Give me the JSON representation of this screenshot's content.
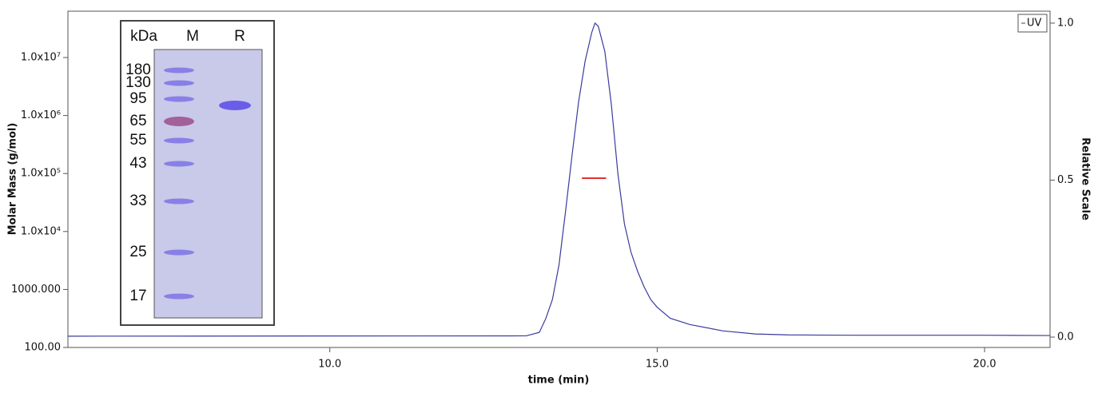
{
  "chart_data": {
    "type": "line",
    "x_label": "time (min)",
    "y_label": "Molar Mass (g/mol)",
    "y2_label": "Relative Scale",
    "xlim": [
      6,
      21
    ],
    "xticks": [
      {
        "value": 10,
        "label": "10.0"
      },
      {
        "value": 15,
        "label": "15.0"
      },
      {
        "value": 20,
        "label": "20.0"
      }
    ],
    "ylog": true,
    "ylim": [
      100,
      63000000
    ],
    "yticks": [
      {
        "value": 100,
        "label": "100.00"
      },
      {
        "value": 1000,
        "label": "1000.000"
      },
      {
        "value": 10000,
        "label": "1.0x10⁴"
      },
      {
        "value": 100000,
        "label": "1.0x10⁵"
      },
      {
        "value": 1000000,
        "label": "1.0x10⁶"
      },
      {
        "value": 10000000,
        "label": "1.0x10⁷"
      }
    ],
    "y2lim": [
      -0.033,
      1.038
    ],
    "y2ticks": [
      {
        "value": 0,
        "label": "0.0"
      },
      {
        "value": 0.5,
        "label": "0.5"
      },
      {
        "value": 1,
        "label": "1.0"
      }
    ],
    "legend": "top-right",
    "series": [
      {
        "name": "UV",
        "color": "#3a3a9e",
        "axis": "y2",
        "x": [
          6,
          13.0,
          13.2,
          13.3,
          13.4,
          13.5,
          13.6,
          13.7,
          13.8,
          13.9,
          14.0,
          14.05,
          14.1,
          14.2,
          14.3,
          14.4,
          14.5,
          14.6,
          14.7,
          14.8,
          14.9,
          15.0,
          15.2,
          15.5,
          16.0,
          16.5,
          17,
          18,
          20,
          21
        ],
        "values": [
          0.003,
          0.004,
          0.015,
          0.06,
          0.12,
          0.23,
          0.4,
          0.58,
          0.75,
          0.88,
          0.97,
          1.0,
          0.99,
          0.91,
          0.74,
          0.52,
          0.36,
          0.27,
          0.21,
          0.16,
          0.12,
          0.095,
          0.06,
          0.04,
          0.02,
          0.01,
          0.007,
          0.006,
          0.006,
          0.005
        ]
      },
      {
        "color": "#e00000",
        "axis": "y",
        "x": [
          13.85,
          14.22
        ],
        "values": [
          83000,
          83000
        ]
      }
    ]
  },
  "gel_inset": {
    "headers": [
      "kDa",
      "M",
      "R"
    ],
    "markers": [
      "180",
      "130",
      "95",
      "65",
      "55",
      "43",
      "33",
      "25",
      "17"
    ]
  }
}
